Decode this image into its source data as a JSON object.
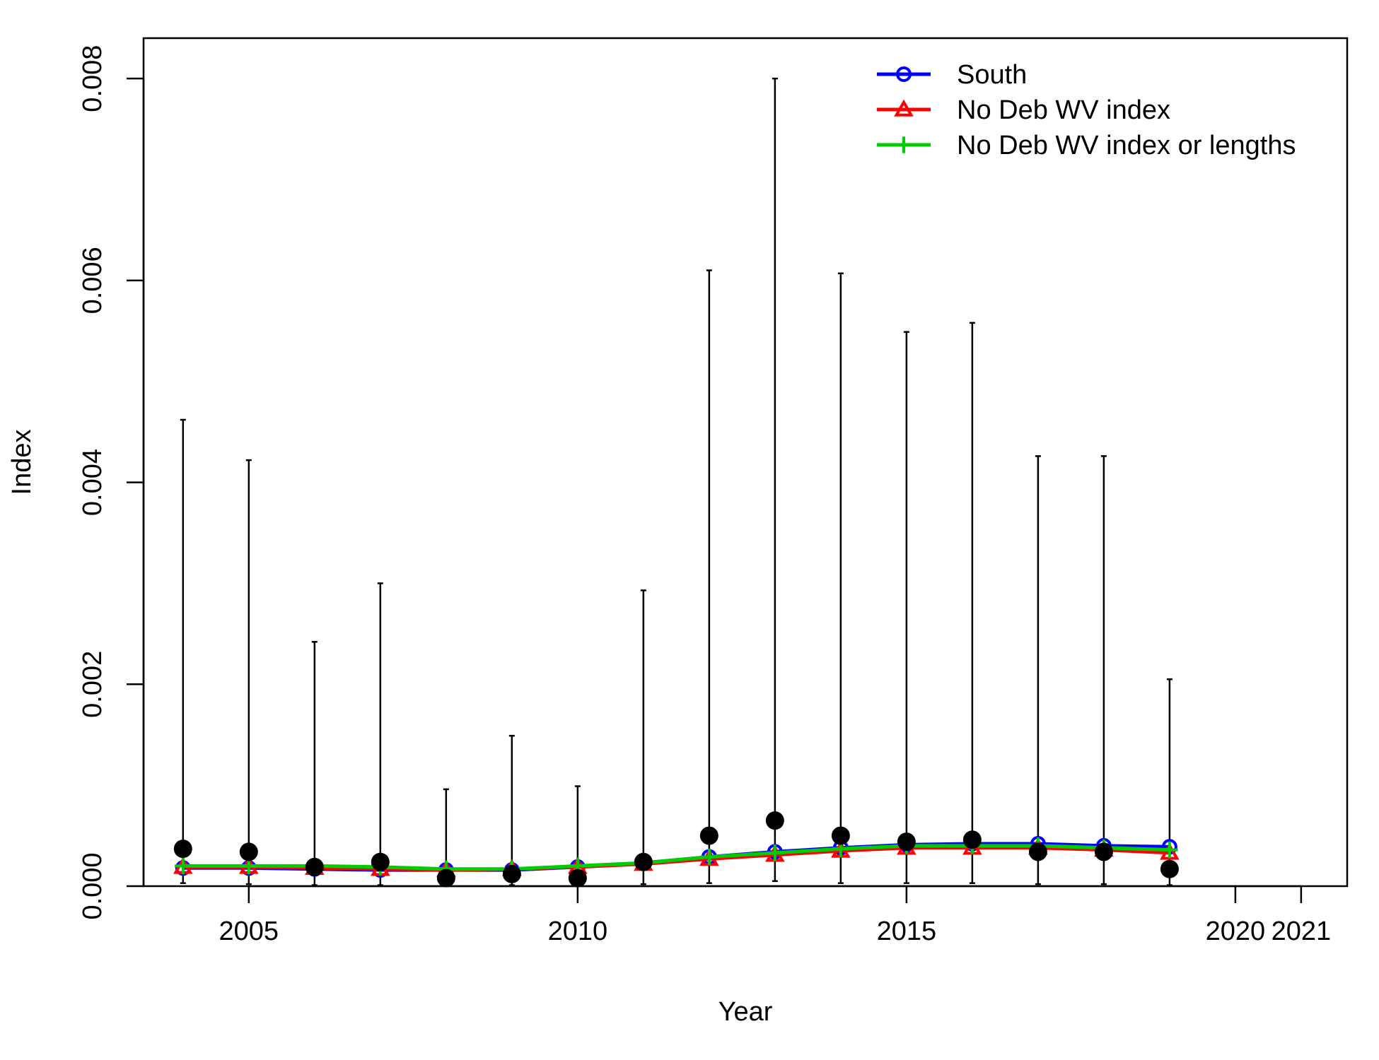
{
  "chart_data": {
    "type": "line",
    "xlabel": "Year",
    "ylabel": "Index",
    "xlim": [
      2003.4,
      2021.7
    ],
    "ylim": [
      0,
      0.0084
    ],
    "x_ticks": [
      2005,
      2010,
      2015,
      2020,
      2021
    ],
    "x_tick_labels": [
      "2005",
      "2010",
      "2015",
      "2020",
      "2021"
    ],
    "y_ticks": [
      0,
      0.002,
      0.004,
      0.006,
      0.008
    ],
    "y_tick_labels": [
      "0.000",
      "0.002",
      "0.004",
      "0.006",
      "0.008"
    ],
    "grid": false,
    "legend_position": "top-right",
    "years": [
      2004,
      2005,
      2006,
      2007,
      2008,
      2009,
      2010,
      2011,
      2012,
      2013,
      2014,
      2015,
      2016,
      2017,
      2018,
      2019
    ],
    "observed": {
      "values": [
        0.00037,
        0.00034,
        0.00019,
        0.00024,
        8e-05,
        0.00012,
        8e-05,
        0.00024,
        0.0005,
        0.00065,
        0.0005,
        0.00044,
        0.00046,
        0.00034,
        0.00034,
        0.00017
      ],
      "lower": [
        3e-05,
        2e-05,
        1e-05,
        1e-05,
        1e-05,
        1e-05,
        1e-05,
        2e-05,
        3e-05,
        5e-05,
        3e-05,
        3e-05,
        3e-05,
        2e-05,
        2e-05,
        1e-05
      ],
      "upper": [
        0.00462,
        0.00422,
        0.00242,
        0.003,
        0.00096,
        0.00149,
        0.00099,
        0.00293,
        0.0061,
        0.008,
        0.00607,
        0.00549,
        0.00558,
        0.00426,
        0.00426,
        0.00205
      ],
      "color": "#000000"
    },
    "series": [
      {
        "name": "South",
        "marker": "circle",
        "color": "#0000ff",
        "values": [
          0.00018,
          0.00018,
          0.00017,
          0.00016,
          0.00016,
          0.00016,
          0.00019,
          0.00023,
          0.00029,
          0.00034,
          0.00038,
          0.00041,
          0.00042,
          0.00042,
          0.0004,
          0.00039
        ]
      },
      {
        "name": "No Deb WV index",
        "marker": "triangle",
        "color": "#ff0000",
        "values": [
          0.00019,
          0.00019,
          0.00018,
          0.00017,
          0.00016,
          0.00017,
          0.00019,
          0.00022,
          0.00027,
          0.00031,
          0.00035,
          0.00038,
          0.00038,
          0.00038,
          0.00036,
          0.00033
        ]
      },
      {
        "name": "No Deb WV index or lengths",
        "marker": "plus",
        "color": "#00cd00",
        "values": [
          0.0002,
          0.0002,
          0.0002,
          0.00019,
          0.00017,
          0.00017,
          0.0002,
          0.00023,
          0.00029,
          0.00033,
          0.00037,
          0.0004,
          0.0004,
          0.0004,
          0.00038,
          0.00036
        ]
      }
    ]
  }
}
